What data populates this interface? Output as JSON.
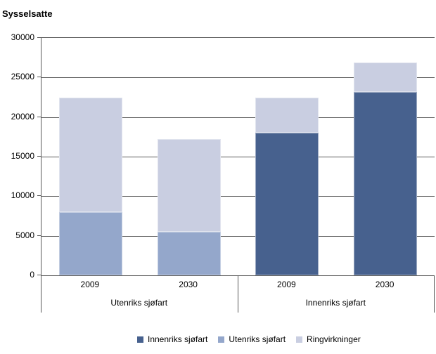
{
  "title": "Sysselsatte",
  "colors": {
    "innenriks": "#47618E",
    "utenriks": "#94A7CB",
    "ringvirkninger": "#C9CEE1",
    "axis": "#595959",
    "background": "#FFFFFF"
  },
  "chart_data": {
    "type": "bar",
    "stacked": true,
    "title": "Sysselsatte",
    "ylabel": "Sysselsatte",
    "xlabel": "",
    "ylim": [
      0,
      30000
    ],
    "yticks": [
      0,
      5000,
      10000,
      15000,
      20000,
      25000,
      30000
    ],
    "grid": "horizontal",
    "legend_position": "bottom",
    "categories": [
      "2009",
      "2030",
      "2009",
      "2030"
    ],
    "category_groups": [
      "Utenriks sjøfart",
      "Utenriks sjøfart",
      "Innenriks sjøfart",
      "Innenriks sjøfart"
    ],
    "group_labels": [
      "Utenriks sjøfart",
      "Innenriks sjøfart"
    ],
    "series": [
      {
        "name": "Innenriks sjøfart",
        "color": "#47618E",
        "values": [
          0,
          0,
          18000,
          23200
        ]
      },
      {
        "name": "Utenriks sjøfart",
        "color": "#94A7CB",
        "values": [
          8000,
          5500,
          0,
          0
        ]
      },
      {
        "name": "Ringvirkninger",
        "color": "#C9CEE1",
        "values": [
          14500,
          11700,
          4500,
          3700
        ]
      }
    ],
    "totals": [
      22500,
      17200,
      22500,
      26900
    ],
    "legend": [
      "Innenriks sjøfart",
      "Utenriks sjøfart",
      "Ringvirkninger"
    ]
  }
}
